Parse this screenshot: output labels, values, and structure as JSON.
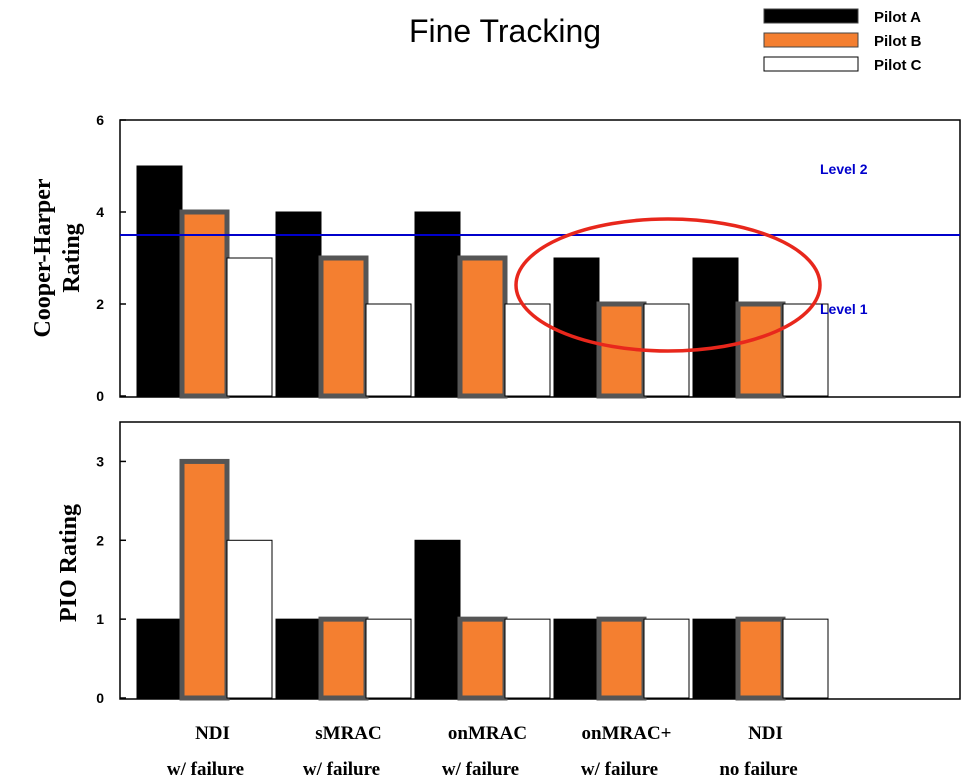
{
  "title": "Fine Tracking",
  "legend": [
    {
      "name": "Pilot A",
      "color": "#000000"
    },
    {
      "name": "Pilot B",
      "color": "#f47f30"
    },
    {
      "name": "Pilot C",
      "color": "#ffffff"
    }
  ],
  "categories": [
    {
      "line1": "NDI",
      "line2": "w/ failure"
    },
    {
      "line1": "sMRAC",
      "line2": "w/ failure"
    },
    {
      "line1": "onMRAC",
      "line2": "w/ failure"
    },
    {
      "line1": "onMRAC+",
      "line2": "w/ failure"
    },
    {
      "line1": "NDI",
      "line2": "no failure"
    }
  ],
  "chart_data": [
    {
      "type": "bar",
      "ylabel_line1": "Cooper-Harper",
      "ylabel_line2": "Rating",
      "ylim": [
        0,
        6
      ],
      "yticks": [
        "0",
        "2",
        "4",
        "6"
      ],
      "series": [
        {
          "name": "Pilot A",
          "values": [
            5,
            4,
            4,
            3,
            3
          ]
        },
        {
          "name": "Pilot B",
          "values": [
            4,
            3,
            3,
            2,
            2
          ]
        },
        {
          "name": "Pilot C",
          "values": [
            3,
            2,
            2,
            2,
            2
          ]
        }
      ],
      "threshold": {
        "value": 3.5,
        "color": "#0000cc"
      },
      "annotations": [
        {
          "text": "Level 2",
          "color": "#0000cc"
        },
        {
          "text": "Level 1",
          "color": "#0000cc"
        }
      ],
      "highlight": {
        "shape": "ellipse",
        "color": "#e8271c",
        "categories": [
          3,
          4
        ]
      }
    },
    {
      "type": "bar",
      "ylabel": "PIO Rating",
      "ylim": [
        0,
        3.5
      ],
      "yticks": [
        "0",
        "1",
        "2",
        "3"
      ],
      "series": [
        {
          "name": "Pilot A",
          "values": [
            1,
            1,
            2,
            1,
            1
          ]
        },
        {
          "name": "Pilot B",
          "values": [
            3,
            1,
            1,
            1,
            1
          ]
        },
        {
          "name": "Pilot C",
          "values": [
            2,
            1,
            1,
            1,
            1
          ]
        }
      ]
    }
  ]
}
